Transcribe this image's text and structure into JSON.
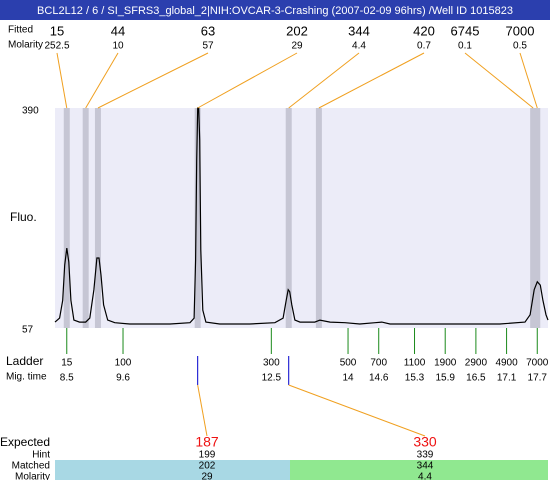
{
  "header": {
    "title": "BCL2L12 / 6 / SI_SFRS3_global_2|NIH:OVCAR-3-Crashing (2007-02-09 96hrs) /Well ID 1015823"
  },
  "chart_data": {
    "type": "electropherogram",
    "y_label": "Fluo.",
    "ylim": [
      57,
      390
    ],
    "yticks": [
      57,
      390
    ],
    "xlim": [
      8.27,
      17.91
    ],
    "color": "#000000",
    "x": [
      8.27,
      8.36,
      8.42,
      8.46,
      8.5,
      8.54,
      8.58,
      8.64,
      8.75,
      8.87,
      8.95,
      9.03,
      9.09,
      9.13,
      9.17,
      9.22,
      9.3,
      9.44,
      9.73,
      10.12,
      10.52,
      10.91,
      10.99,
      11.02,
      11.04,
      11.06,
      11.08,
      11.1,
      11.12,
      11.16,
      11.22,
      11.49,
      12.08,
      12.57,
      12.73,
      12.79,
      12.83,
      12.86,
      12.9,
      12.96,
      13.06,
      13.35,
      13.45,
      13.65,
      13.94,
      14.23,
      14.53,
      14.66,
      14.82,
      15.41,
      16.19,
      16.97,
      17.46,
      17.56,
      17.64,
      17.7,
      17.76,
      17.81,
      17.87,
      17.91
    ],
    "values": [
      66,
      72,
      99,
      152,
      178,
      157,
      99,
      69,
      66,
      66,
      72,
      115,
      163,
      163,
      137,
      92,
      69,
      65,
      63,
      63,
      63,
      65,
      72,
      160,
      311,
      390,
      390,
      342,
      175,
      84,
      66,
      63,
      63,
      65,
      72,
      99,
      115,
      112,
      92,
      69,
      66,
      66,
      69,
      66,
      65,
      63,
      65,
      66,
      63,
      63,
      63,
      63,
      66,
      77,
      115,
      127,
      122,
      99,
      77,
      69
    ],
    "peaks": {
      "row_labels": [
        "Fitted",
        "Molarity"
      ],
      "size": [
        15,
        44,
        63,
        202,
        344,
        420,
        6745,
        7000
      ],
      "molarity": [
        252.5,
        10,
        57,
        29,
        4.4,
        0.7,
        0.1,
        0.5
      ],
      "time": [
        8.5,
        8.87,
        9.11,
        11.06,
        12.84,
        13.43,
        17.62,
        17.7
      ]
    },
    "ladder": {
      "label": "Ladder",
      "time_label": "Mig. time",
      "sizes": [
        15,
        100,
        300,
        500,
        700,
        1100,
        1900,
        2900,
        4900,
        7000
      ],
      "times": [
        8.5,
        9.6,
        12.5,
        14,
        14.6,
        15.3,
        15.9,
        16.5,
        17.1,
        17.7
      ]
    }
  },
  "matches": {
    "labels": [
      "Expected",
      "Hint",
      "Matched",
      "Molarity"
    ],
    "columns": [
      {
        "expected": 187,
        "hint": 199,
        "matched": 202,
        "molarity": 29,
        "time": 11.06
      },
      {
        "expected": 330,
        "hint": 339,
        "matched": 344,
        "molarity": 4.4,
        "time": 12.84
      }
    ]
  }
}
